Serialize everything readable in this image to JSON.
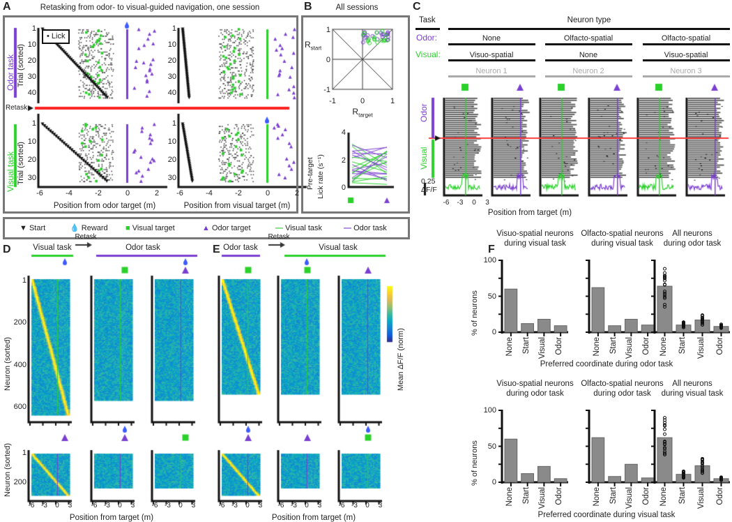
{
  "panel_labels": {
    "a": "A",
    "b": "B",
    "c": "C",
    "d": "D",
    "e": "E",
    "f": "F"
  },
  "A": {
    "title": "Retasking from odor- to visual-guided navigation, one session",
    "lick": "• Lick",
    "odor_task": "Odor task",
    "visual_task": "Visual task",
    "trial_label": "Trial (sorted)",
    "retask": "Retask",
    "xlabel_odor": "Position from odor target (m)",
    "xlabel_visual": "Position from visual target (m)",
    "yticks_top": [
      "1",
      "10",
      "20",
      "30",
      "40"
    ],
    "yticks_bottom": [
      "1",
      "10",
      "20",
      "30"
    ],
    "xticks": [
      "-6",
      "-4",
      "-2",
      "0",
      "2"
    ]
  },
  "B": {
    "title": "All sessions",
    "r": "R",
    "start": "start",
    "target": "target",
    "yticks": [
      "1",
      "0",
      "-1"
    ],
    "xticks": [
      "-1",
      "0",
      "1"
    ],
    "ylabel1": "Pre-target",
    "ylabel2": "Lick rate (s⁻¹)",
    "lick_ticks": [
      "4",
      "2",
      "0"
    ]
  },
  "legend": {
    "start": "Start",
    "reward": "Reward",
    "visual_target": "Visual target",
    "odor_target": "Odor target",
    "visual_task": "Visual task",
    "odor_task": "Odor task"
  },
  "C": {
    "task": "Task",
    "neuron_type": "Neuron type",
    "odor": "Odor:",
    "visual": "Visual:",
    "odor_types": [
      "None",
      "Olfacto-spatial",
      "Olfacto-spatial"
    ],
    "visual_types": [
      "Visuo-spatial",
      "None",
      "Visuo-spatial"
    ],
    "neurons": [
      "Neuron 1",
      "Neuron 2",
      "Neuron 3"
    ],
    "odor_side": "Odor",
    "visual_side": "Visual",
    "scale": "0.25",
    "scale_unit": "ΔF/F",
    "xticks": [
      "-6",
      "-3",
      "0",
      "3"
    ],
    "xlabel": "Position from target (m)"
  },
  "D": {
    "visual_task": "Visual task",
    "retask": "Retask",
    "odor_task": "Odor task",
    "ylabel_top": "Neuron (sorted)",
    "ylabel_bottom": "Neuron (sorted)",
    "yticks_top": [
      "1",
      "200",
      "400",
      "600"
    ],
    "yticks_bottom": [
      "1",
      "200"
    ],
    "xticks": [
      "-6",
      "-3",
      "0",
      "3"
    ],
    "xlabel": "Position from target (m)"
  },
  "E": {
    "odor_task": "Odor task",
    "retask": "Retask",
    "visual_task": "Visual task",
    "xticks": [
      "-6",
      "-3",
      "0",
      "3"
    ],
    "xlabel": "Position from target (m)",
    "colorbar_label": "Mean ΔF/F (norm)"
  },
  "colors": {
    "visual": "#2bd12b",
    "odor": "#7a3fd0",
    "retask": "#ff2222",
    "bar": "#888888"
  },
  "chart_data": [
    {
      "type": "bar",
      "title": [
        "Visuo-spatial neurons",
        "during visual task"
      ],
      "categories": [
        "None",
        "Start",
        "Visual",
        "Odor"
      ],
      "values": [
        60,
        12,
        18,
        9
      ],
      "ylabel": "% of neurons",
      "ylim": [
        0,
        100
      ],
      "yticks": [
        "0",
        "50",
        "100"
      ]
    },
    {
      "type": "bar",
      "title": [
        "Olfacto-spatial neurons",
        "during visual task"
      ],
      "categories": [
        "None",
        "Start",
        "Visual",
        "Odor"
      ],
      "values": [
        62,
        9,
        18,
        10
      ],
      "ylim": [
        0,
        100
      ]
    },
    {
      "type": "bar",
      "title": [
        "All neurons",
        "during odor task"
      ],
      "categories": [
        "None",
        "Start",
        "Visual",
        "Odor"
      ],
      "values": [
        64,
        10,
        17,
        8
      ],
      "ylim": [
        0,
        100
      ],
      "points": true
    },
    {
      "type": "bar",
      "title": [
        "Visuo-spatial neurons",
        "during odor task"
      ],
      "categories": [
        "None",
        "Start",
        "Visual",
        "Odor"
      ],
      "values": [
        60,
        12,
        22,
        5
      ],
      "ylabel": "% of neurons",
      "ylim": [
        0,
        100
      ],
      "yticks": [
        "0",
        "50",
        "100"
      ]
    },
    {
      "type": "bar",
      "title": [
        "Olfacto-spatial neurons",
        "during odor task"
      ],
      "categories": [
        "None",
        "Start",
        "Visual",
        "Odor"
      ],
      "values": [
        62,
        8,
        25,
        6
      ],
      "ylim": [
        0,
        100
      ]
    },
    {
      "type": "bar",
      "title": [
        "All neurons",
        "during visual task"
      ],
      "categories": [
        "None",
        "Start",
        "Visual",
        "Odor"
      ],
      "values": [
        62,
        11,
        23,
        5
      ],
      "ylim": [
        0,
        100
      ],
      "points": true
    }
  ],
  "F": {
    "xlabel_top": "Preferred coordinate during odor task",
    "xlabel_bottom": "Preferred coordinate during visual task"
  }
}
